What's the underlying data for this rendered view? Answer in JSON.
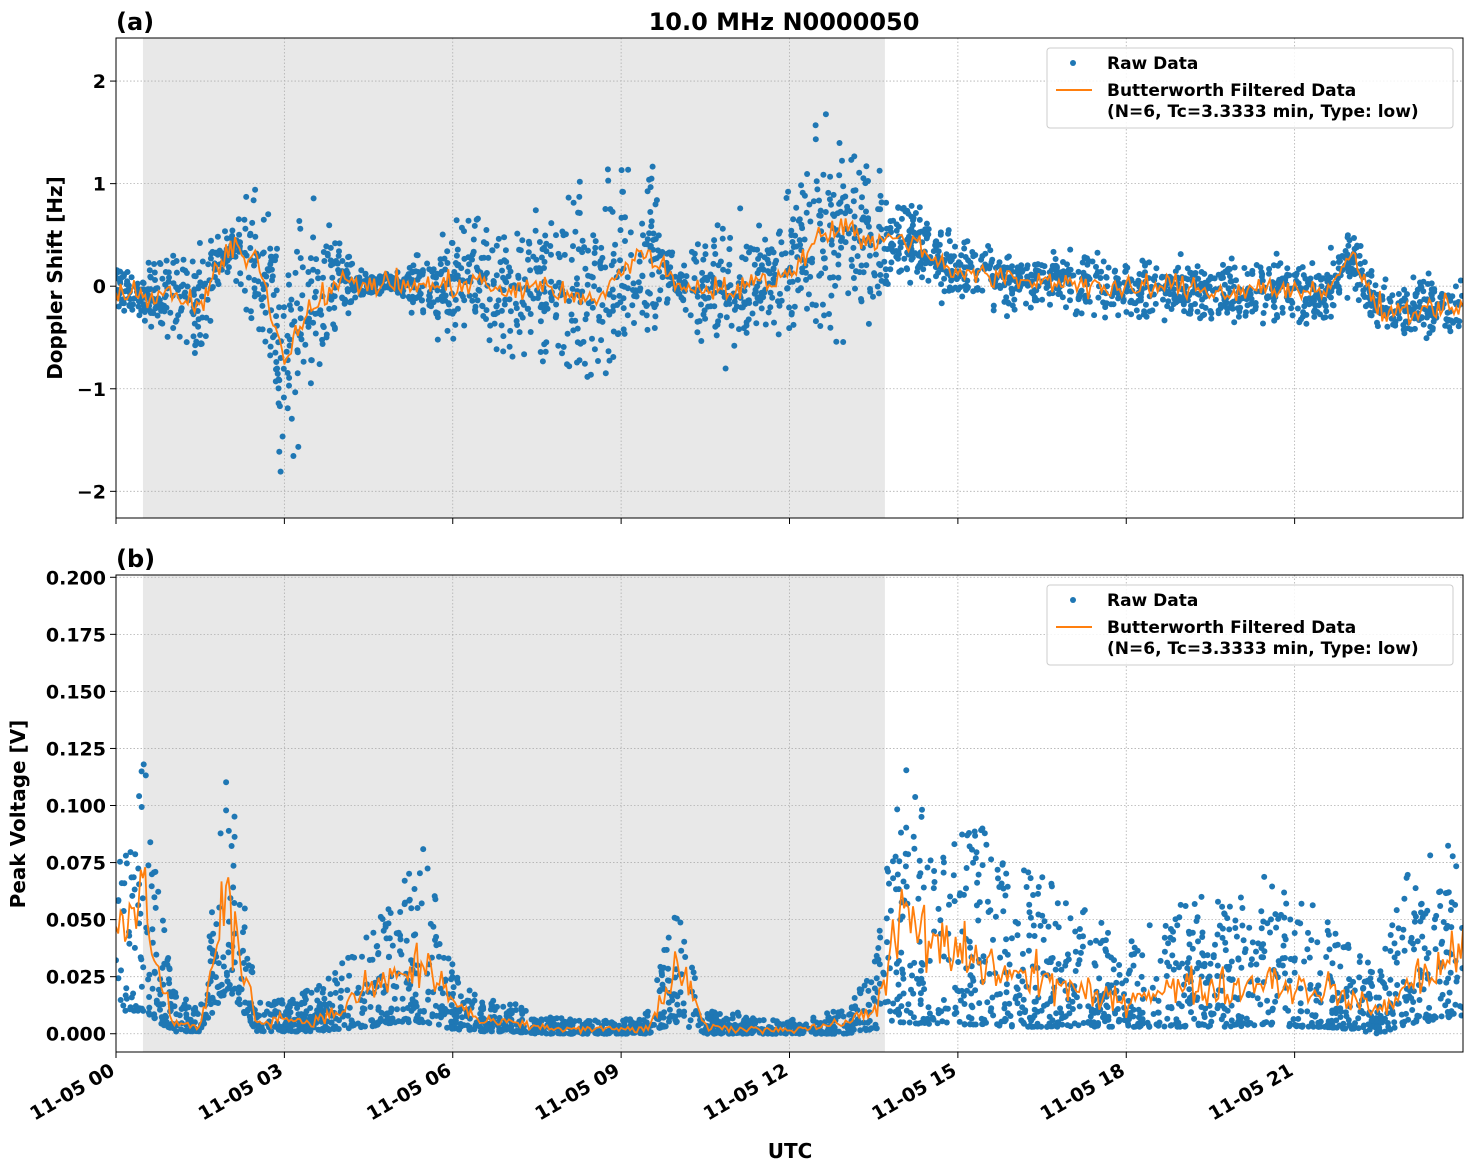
{
  "title": "10.0 MHz N0000050",
  "chart_data": [
    {
      "panel_label": "(a)",
      "type": "scatter",
      "ylabel": "Doppler Shift [Hz]",
      "xlabel": "",
      "ylim": [
        -2.26,
        2.42
      ],
      "xlim_hours": [
        0,
        24
      ],
      "yticks": [
        -2,
        -1,
        0,
        1,
        2
      ],
      "ytick_labels": [
        "−2",
        "−1",
        "0",
        "1",
        "2"
      ],
      "grid": true,
      "legend_placement": "top-right",
      "shaded_region_hours": [
        0.48,
        13.7
      ],
      "x_hours": [
        0,
        0.5,
        1,
        1.5,
        2,
        2.5,
        3,
        3.5,
        4,
        4.5,
        5,
        5.5,
        6,
        6.5,
        7,
        7.5,
        8,
        8.5,
        9,
        9.5,
        10,
        10.5,
        11,
        11.5,
        12,
        12.5,
        13,
        13.5,
        14,
        14.5,
        15,
        15.5,
        16,
        16.5,
        17,
        17.5,
        18,
        18.5,
        19,
        19.5,
        20,
        20.5,
        21,
        21.5,
        22,
        22.5,
        23,
        23.5,
        24
      ],
      "series": [
        {
          "name": "Raw Data",
          "color": "#1f77b4",
          "kind": "points",
          "center": [
            0,
            -0.1,
            -0.1,
            -0.2,
            0.35,
            0.3,
            -0.7,
            -0.15,
            0.03,
            0.02,
            0.02,
            0,
            0,
            0.05,
            -0.1,
            0.05,
            -0.1,
            -0.15,
            0.15,
            0.35,
            0,
            0,
            -0.05,
            0.05,
            0.1,
            0.5,
            0.6,
            0.4,
            0.5,
            0.3,
            0.15,
            0.1,
            0.05,
            0.05,
            0.05,
            0,
            -0.05,
            0,
            0,
            -0.05,
            -0.05,
            0,
            -0.05,
            -0.1,
            0.3,
            -0.2,
            -0.25,
            -0.2,
            -0.2
          ],
          "spread": [
            0.2,
            0.2,
            0.5,
            0.6,
            0.15,
            0.6,
            1.0,
            0.9,
            0.3,
            0.1,
            0.1,
            0.3,
            0.5,
            0.5,
            0.5,
            0.6,
            0.8,
            0.8,
            0.9,
            0.8,
            0.1,
            0.5,
            0.6,
            0.4,
            0.6,
            0.8,
            0.8,
            0.6,
            0.35,
            0.3,
            0.25,
            0.25,
            0.25,
            0.25,
            0.25,
            0.25,
            0.25,
            0.25,
            0.25,
            0.25,
            0.25,
            0.25,
            0.25,
            0.25,
            0.3,
            0.25,
            0.25,
            0.25,
            0.25
          ]
        },
        {
          "name": "Butterworth Filtered Data",
          "name_line2": "(N=6, Tc=3.3333 min, Type: low)",
          "color": "#ff7f0e",
          "kind": "line",
          "values": [
            0,
            -0.1,
            -0.1,
            -0.2,
            0.35,
            0.3,
            -0.7,
            -0.15,
            0.03,
            0.02,
            0.02,
            0,
            0,
            0.05,
            -0.1,
            0.05,
            -0.1,
            -0.15,
            0.15,
            0.35,
            0,
            0,
            -0.05,
            0.05,
            0.1,
            0.5,
            0.6,
            0.4,
            0.5,
            0.3,
            0.15,
            0.1,
            0.05,
            0.05,
            0.05,
            0,
            -0.05,
            0,
            0,
            -0.05,
            -0.05,
            0,
            -0.05,
            -0.1,
            0.3,
            -0.2,
            -0.25,
            -0.2,
            -0.2
          ]
        }
      ]
    },
    {
      "panel_label": "(b)",
      "type": "scatter",
      "ylabel": "Peak Voltage [V]",
      "xlabel": "UTC",
      "ylim": [
        -0.008,
        0.201
      ],
      "xlim_hours": [
        0,
        24
      ],
      "yticks": [
        0,
        0.025,
        0.05,
        0.075,
        0.1,
        0.125,
        0.15,
        0.175,
        0.2
      ],
      "ytick_labels": [
        "0.000",
        "0.025",
        "0.050",
        "0.075",
        "0.100",
        "0.125",
        "0.150",
        "0.175",
        "0.200"
      ],
      "xticks_hours": [
        0,
        3,
        6,
        9,
        12,
        15,
        18,
        21
      ],
      "xtick_labels": [
        "11-05 00",
        "11-05 03",
        "11-05 06",
        "11-05 09",
        "11-05 12",
        "11-05 15",
        "11-05 18",
        "11-05 21"
      ],
      "grid": true,
      "legend_placement": "top-right",
      "shaded_region_hours": [
        0.48,
        13.7
      ],
      "x_hours": [
        0,
        0.5,
        1,
        1.5,
        2,
        2.5,
        3,
        3.5,
        4,
        4.5,
        5,
        5.5,
        6,
        6.5,
        7,
        7.5,
        8,
        8.5,
        9,
        9.5,
        10,
        10.5,
        11,
        11.5,
        12,
        12.5,
        13,
        13.5,
        14,
        14.5,
        15,
        15.5,
        16,
        16.5,
        17,
        17.5,
        18,
        18.5,
        19,
        19.5,
        20,
        20.5,
        21,
        21.5,
        22,
        22.5,
        23,
        23.5,
        24
      ],
      "series": [
        {
          "name": "Raw Data",
          "color": "#1f77b4",
          "kind": "points",
          "max": [
            0.09,
            0.12,
            0.02,
            0.01,
            0.12,
            0.015,
            0.015,
            0.02,
            0.03,
            0.045,
            0.06,
            0.085,
            0.03,
            0.015,
            0.015,
            0.008,
            0.007,
            0.006,
            0.006,
            0.01,
            0.06,
            0.01,
            0.01,
            0.006,
            0.006,
            0.008,
            0.012,
            0.03,
            0.12,
            0.1,
            0.09,
            0.09,
            0.075,
            0.07,
            0.06,
            0.05,
            0.04,
            0.05,
            0.06,
            0.06,
            0.06,
            0.07,
            0.06,
            0.06,
            0.04,
            0.03,
            0.07,
            0.08,
            0.09
          ],
          "min": [
            0.01,
            0.01,
            0.001,
            0.001,
            0.02,
            0.001,
            0.001,
            0.001,
            0.002,
            0.003,
            0.005,
            0.005,
            0.002,
            0.001,
            0.001,
            0,
            0,
            0,
            0,
            0,
            0.005,
            0,
            0,
            0,
            0,
            0,
            0,
            0.002,
            0.005,
            0.004,
            0.004,
            0.004,
            0.003,
            0.003,
            0.003,
            0.003,
            0.003,
            0.003,
            0.003,
            0.003,
            0.003,
            0.004,
            0.003,
            0.003,
            0.002,
            0,
            0.004,
            0.006,
            0.008
          ]
        },
        {
          "name": "Butterworth Filtered Data",
          "name_line2": "(N=6, Tc=3.3333 min, Type: low)",
          "color": "#ff7f0e",
          "kind": "line",
          "values": [
            0.04,
            0.06,
            0.005,
            0.003,
            0.06,
            0.005,
            0.007,
            0.005,
            0.01,
            0.02,
            0.025,
            0.03,
            0.015,
            0.005,
            0.005,
            0.003,
            0.002,
            0.002,
            0.002,
            0.002,
            0.03,
            0.003,
            0.002,
            0.002,
            0.002,
            0.003,
            0.005,
            0.01,
            0.05,
            0.04,
            0.035,
            0.03,
            0.025,
            0.025,
            0.02,
            0.015,
            0.015,
            0.02,
            0.02,
            0.02,
            0.02,
            0.025,
            0.02,
            0.02,
            0.015,
            0.01,
            0.02,
            0.03,
            0.035
          ]
        }
      ]
    }
  ]
}
